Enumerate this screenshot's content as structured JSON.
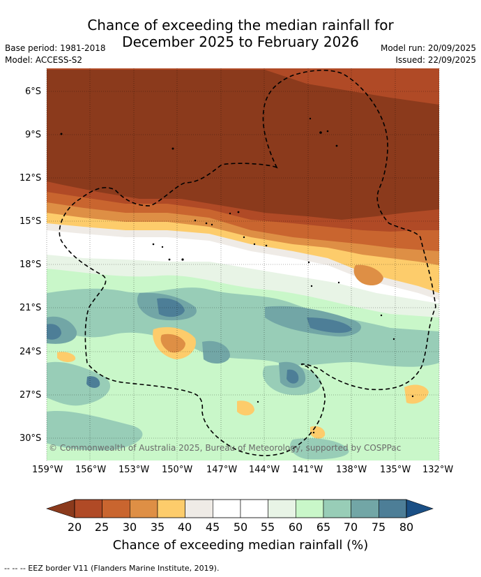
{
  "title_line1": "Chance of exceeding the median rainfall for",
  "title_line2": "December 2025 to February 2026",
  "base_period": "Base period: 1981-2018",
  "model": "Model: ACCESS-S2",
  "model_run": "Model run: 20/09/2025",
  "issued": "Issued: 22/09/2025",
  "copyright": "© Commonwealth of Australia 2025, Bureau of Meteorology, supported by COSPPac",
  "lat_labels": [
    "6°S",
    "9°S",
    "12°S",
    "15°S",
    "18°S",
    "21°S",
    "24°S",
    "27°S",
    "30°S"
  ],
  "lon_labels": [
    "159°W",
    "156°W",
    "153°W",
    "150°W",
    "147°W",
    "144°W",
    "141°W",
    "138°W",
    "135°W",
    "132°W"
  ],
  "colorbar": {
    "title": "Chance of exceeding median rainfall (%)",
    "ticks": [
      "20",
      "25",
      "30",
      "35",
      "40",
      "45",
      "50",
      "55",
      "60",
      "65",
      "70",
      "75",
      "80"
    ],
    "colors": [
      "#8b3a1c",
      "#b04a26",
      "#c9652f",
      "#de8f45",
      "#fdcc6b",
      "#efebe6",
      "#ffffff",
      "#ffffff",
      "#e8f4e6",
      "#c9f7c9",
      "#98cdb7",
      "#72a6a6",
      "#4d7e97",
      "#1a4f85"
    ]
  },
  "footer": "--  --  -- EEZ border V11 (Flanders Marine Institute, 2019)."
}
